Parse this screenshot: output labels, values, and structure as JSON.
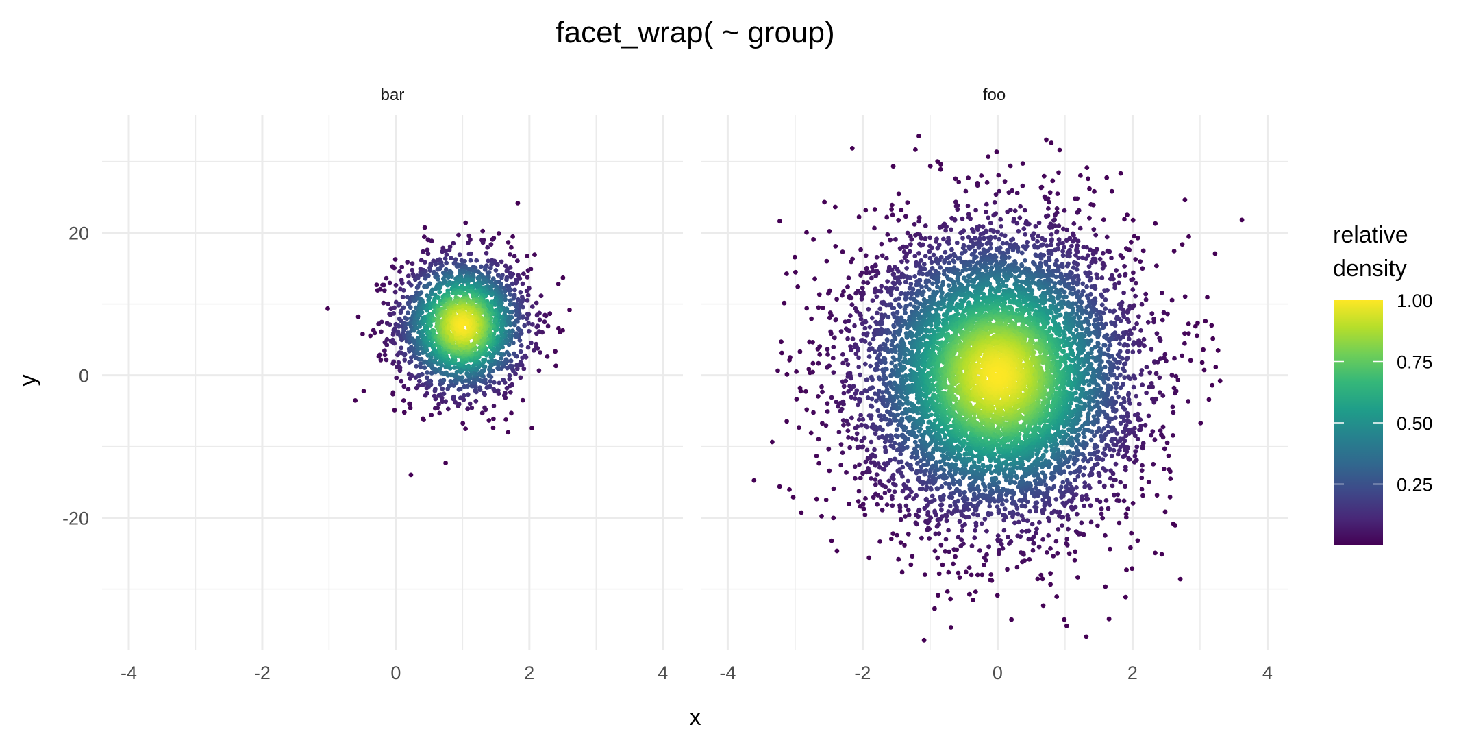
{
  "chart_data": {
    "type": "scatter",
    "title": "facet_wrap( ~ group)",
    "xlabel": "x",
    "ylabel": "y",
    "xlim": [
      -4.4,
      4.3
    ],
    "ylim": [
      -38.5,
      36.5
    ],
    "x_ticks": [
      -4,
      -2,
      0,
      2,
      4
    ],
    "x_tick_labels": [
      "-4",
      "-2",
      "0",
      "2",
      "4"
    ],
    "y_ticks": [
      -20,
      0,
      20
    ],
    "y_tick_labels": [
      "-20",
      "0",
      "20"
    ],
    "grid": true,
    "facets": [
      {
        "label": "bar",
        "approx_n": 2000,
        "x_center": 1.0,
        "y_center": 7.0,
        "x_sd": 0.5,
        "y_sd": 5.0
      },
      {
        "label": "foo",
        "approx_n": 8000,
        "x_center": 0.0,
        "y_center": 0.0,
        "x_sd": 1.0,
        "y_sd": 10.0
      }
    ],
    "color_scale": {
      "title_lines": [
        "relative",
        "density"
      ],
      "palette": "viridis",
      "range": [
        0,
        1
      ],
      "ticks": [
        0.25,
        0.5,
        0.75,
        1.0
      ],
      "tick_labels": [
        "0.25",
        "0.50",
        "0.75",
        "1.00"
      ],
      "placement": "right"
    },
    "colors": {
      "grid": "#ebebeb",
      "tick_text": "#4d4d4d"
    }
  }
}
